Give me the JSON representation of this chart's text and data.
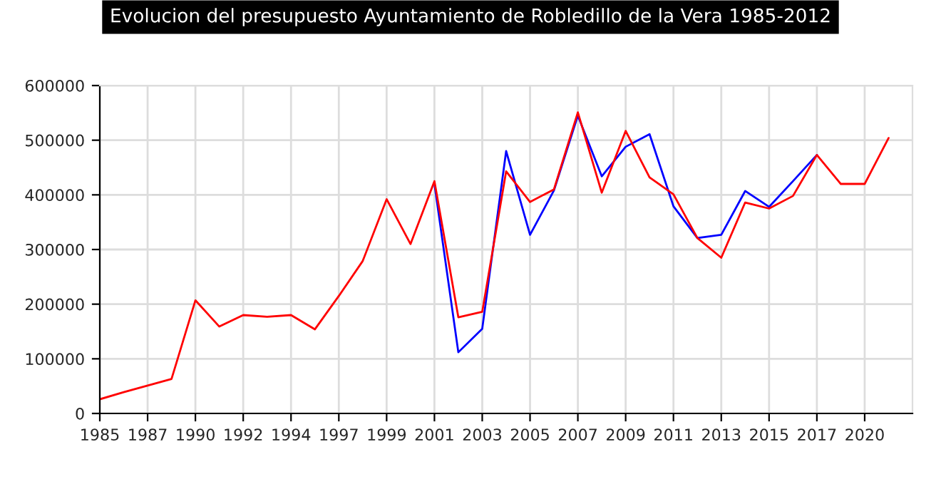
{
  "chart_data": {
    "type": "line",
    "title": "Evolucion del presupuesto Ayuntamiento de Robledillo de la Vera 1985-2012",
    "categories": [
      "1985",
      null,
      "1987",
      null,
      "1990",
      null,
      "1992",
      null,
      "1994",
      null,
      "1997",
      null,
      "1999",
      null,
      "2001",
      null,
      "2003",
      null,
      "2005",
      null,
      "2007",
      null,
      "2009",
      null,
      "2011",
      null,
      "2013",
      null,
      "2015",
      null,
      "2017",
      null,
      "2020",
      null
    ],
    "series": [
      {
        "color": "#0000ff",
        "values": [
          null,
          null,
          null,
          null,
          null,
          null,
          null,
          null,
          null,
          null,
          null,
          null,
          null,
          null,
          420000,
          112000,
          155000,
          480000,
          327000,
          408000,
          545000,
          434000,
          488000,
          511000,
          379000,
          321000,
          327000,
          407000,
          378000,
          425000,
          473000,
          null,
          null,
          null
        ]
      },
      {
        "color": "#ff0000",
        "values": [
          26000,
          39000,
          51000,
          63000,
          207000,
          159000,
          180000,
          177000,
          180000,
          154000,
          215000,
          279000,
          392000,
          310000,
          425000,
          176000,
          186000,
          443000,
          387000,
          410000,
          551000,
          404000,
          517000,
          432000,
          401000,
          321000,
          285000,
          386000,
          375000,
          398000,
          473000,
          420000,
          420000,
          504000
        ]
      }
    ],
    "ylim": [
      0,
      600000
    ],
    "yticks": [
      0,
      100000,
      200000,
      300000,
      400000,
      500000,
      600000
    ],
    "grid": true,
    "legend": false,
    "marker": "none",
    "line_style": "solid"
  }
}
